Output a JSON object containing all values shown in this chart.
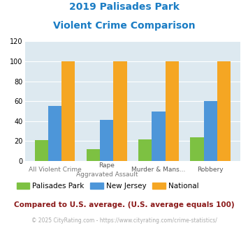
{
  "title_line1": "2019 Palisades Park",
  "title_line2": "Violent Crime Comparison",
  "cat_labels_line1": [
    "",
    "Rape",
    "Murder & Mans...",
    "Robbery"
  ],
  "cat_labels_line2": [
    "All Violent Crime",
    "Aggravated Assault",
    "",
    ""
  ],
  "palisades_park": [
    21,
    12,
    22,
    24
  ],
  "new_jersey": [
    55,
    41,
    50,
    60
  ],
  "national": [
    100,
    100,
    100,
    100
  ],
  "colors": {
    "palisades_park": "#7dc142",
    "new_jersey": "#4d96d9",
    "national": "#f5a623"
  },
  "ylim": [
    0,
    120
  ],
  "yticks": [
    0,
    20,
    40,
    60,
    80,
    100,
    120
  ],
  "title_color": "#1a7cc4",
  "plot_bg": "#dde9f0",
  "legend_labels": [
    "Palisades Park",
    "New Jersey",
    "National"
  ],
  "footnote1": "Compared to U.S. average. (U.S. average equals 100)",
  "footnote2": "© 2025 CityRating.com - https://www.cityrating.com/crime-statistics/",
  "footnote1_color": "#8b1a1a",
  "footnote2_color": "#aaaaaa",
  "bar_width": 0.26
}
